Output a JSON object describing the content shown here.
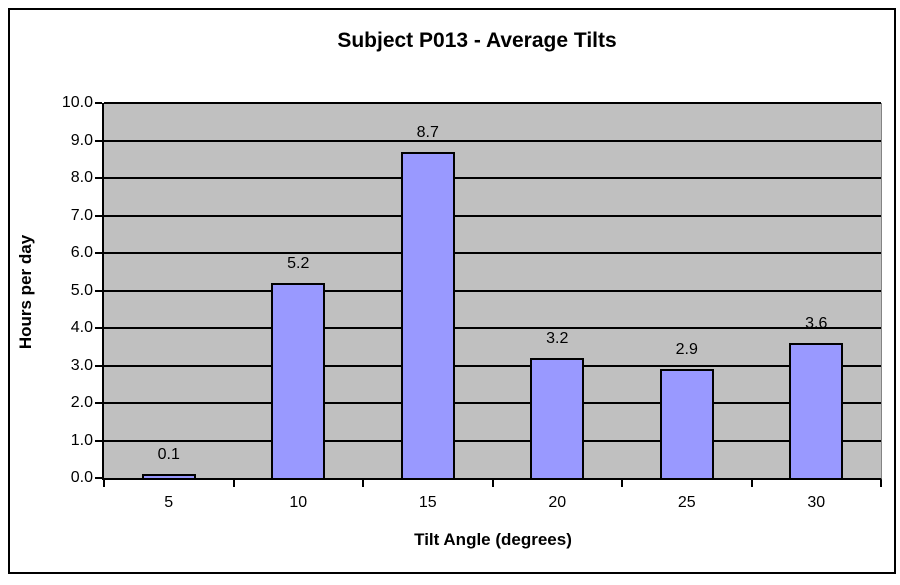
{
  "chart_data": {
    "type": "bar",
    "title": "Subject P013 - Average Tilts",
    "xlabel": "Tilt Angle (degrees)",
    "ylabel": "Hours per day",
    "categories": [
      "5",
      "10",
      "15",
      "20",
      "25",
      "30"
    ],
    "values": [
      0.1,
      5.2,
      8.7,
      3.2,
      2.9,
      3.6
    ],
    "data_labels": [
      "0.1",
      "5.2",
      "8.7",
      "3.2",
      "2.9",
      "3.6"
    ],
    "y_ticks": [
      "0.0",
      "1.0",
      "2.0",
      "3.0",
      "4.0",
      "5.0",
      "6.0",
      "7.0",
      "8.0",
      "9.0",
      "10.0"
    ],
    "ylim": [
      0,
      10
    ],
    "y_step": 1,
    "grid": true,
    "legend": "none",
    "colors": {
      "bar_fill": "#9999FF",
      "bar_border": "#000000",
      "plot_bg": "#C0C0C0",
      "gridline": "#000000",
      "axis": "#000000",
      "chart_bg": "#FFFFFF",
      "chart_border": "#000000",
      "text": "#000000"
    }
  }
}
